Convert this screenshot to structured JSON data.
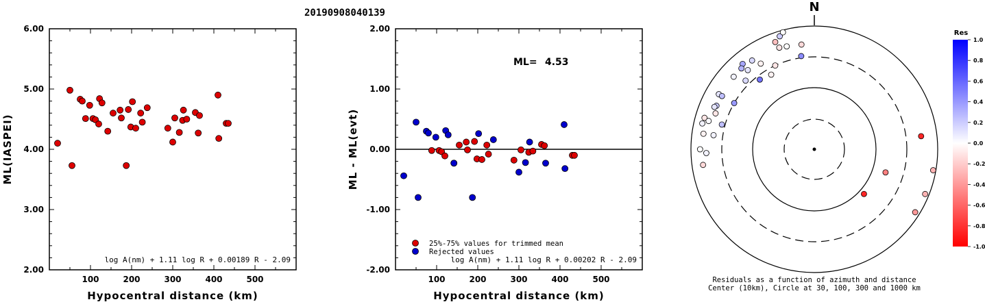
{
  "title": "20190908040139",
  "colors": {
    "red": "#dd0000",
    "blue": "#0000cc"
  },
  "chart_data": [
    {
      "type": "scatter",
      "ylabel": "ML(IASPEI)",
      "xlabel": "Hypocentral distance (km)",
      "xlim": [
        0,
        600
      ],
      "ylim": [
        2,
        6
      ],
      "xticks": [
        "100",
        "200",
        "300",
        "400",
        "500"
      ],
      "yticks": [
        "2.00",
        "3.00",
        "4.00",
        "5.00",
        "6.00"
      ],
      "formula": "log A(nm) + 1.11 log R + 0.00189 R - 2.09",
      "points": [
        [
          20,
          4.1
        ],
        [
          50,
          4.98
        ],
        [
          55,
          3.73
        ],
        [
          75,
          4.83
        ],
        [
          80,
          4.8
        ],
        [
          88,
          4.51
        ],
        [
          98,
          4.73
        ],
        [
          106,
          4.51
        ],
        [
          112,
          4.49
        ],
        [
          120,
          4.42
        ],
        [
          122,
          4.84
        ],
        [
          128,
          4.77
        ],
        [
          142,
          4.3
        ],
        [
          155,
          4.6
        ],
        [
          172,
          4.65
        ],
        [
          175,
          4.52
        ],
        [
          187,
          3.73
        ],
        [
          192,
          4.66
        ],
        [
          198,
          4.37
        ],
        [
          202,
          4.79
        ],
        [
          210,
          4.35
        ],
        [
          222,
          4.6
        ],
        [
          226,
          4.45
        ],
        [
          238,
          4.69
        ],
        [
          288,
          4.35
        ],
        [
          300,
          4.12
        ],
        [
          305,
          4.52
        ],
        [
          316,
          4.28
        ],
        [
          324,
          4.48
        ],
        [
          326,
          4.65
        ],
        [
          334,
          4.5
        ],
        [
          355,
          4.61
        ],
        [
          362,
          4.27
        ],
        [
          365,
          4.56
        ],
        [
          410,
          4.9
        ],
        [
          412,
          4.18
        ],
        [
          430,
          4.43
        ],
        [
          435,
          4.43
        ]
      ]
    },
    {
      "type": "scatter",
      "ylabel": "ML - ML(evt)",
      "xlabel": "Hypocentral distance (km)",
      "xlim": [
        0,
        600
      ],
      "ylim": [
        -2,
        2
      ],
      "xticks": [
        "100",
        "200",
        "300",
        "400",
        "500"
      ],
      "yticks": [
        "-2.00",
        "-1.00",
        "0.00",
        "1.00",
        "2.00"
      ],
      "ml_label": "ML=",
      "ml_value": "4.53",
      "formula": "log A(nm) + 1.11 log R + 0.00202 R - 2.09",
      "legend": [
        "25%-75% values for trimmed mean",
        "Rejected values"
      ],
      "series": [
        {
          "name": "25%-75% values for trimmed mean",
          "color": "red",
          "points": [
            [
              88,
              -0.02
            ],
            [
              106,
              -0.02
            ],
            [
              112,
              -0.04
            ],
            [
              120,
              -0.11
            ],
            [
              142,
              -0.23
            ],
            [
              155,
              0.07
            ],
            [
              172,
              0.12
            ],
            [
              175,
              -0.01
            ],
            [
              192,
              0.13
            ],
            [
              198,
              -0.16
            ],
            [
              210,
              -0.17
            ],
            [
              222,
              0.07
            ],
            [
              226,
              -0.08
            ],
            [
              288,
              -0.18
            ],
            [
              305,
              -0.01
            ],
            [
              324,
              -0.05
            ],
            [
              334,
              -0.03
            ],
            [
              355,
              0.08
            ],
            [
              362,
              0.06
            ],
            [
              430,
              -0.1
            ],
            [
              435,
              -0.1
            ]
          ]
        },
        {
          "name": "Rejected values",
          "color": "blue",
          "points": [
            [
              20,
              -0.44
            ],
            [
              50,
              0.45
            ],
            [
              55,
              -0.8
            ],
            [
              75,
              0.3
            ],
            [
              80,
              0.27
            ],
            [
              98,
              0.2
            ],
            [
              122,
              0.31
            ],
            [
              128,
              0.24
            ],
            [
              142,
              -0.23
            ],
            [
              187,
              -0.8
            ],
            [
              202,
              0.26
            ],
            [
              238,
              0.16
            ],
            [
              300,
              -0.38
            ],
            [
              316,
              -0.22
            ],
            [
              326,
              0.12
            ],
            [
              365,
              -0.23
            ],
            [
              410,
              0.41
            ],
            [
              412,
              -0.32
            ]
          ]
        }
      ]
    },
    {
      "type": "scatter",
      "subtype": "polar",
      "north_label": "N",
      "caption_1": "Residuals as a function of azimuth and distance",
      "caption_2": "Center (10km), Circle at 30, 100, 300 and 1000 km",
      "colorbar_title": "Res",
      "colorbar_ticks": [
        "1.0",
        "0.8",
        "0.6",
        "0.4",
        "0.2",
        "0.0",
        "-0.2",
        "-0.4",
        "-0.6",
        "-0.8",
        "-1.0"
      ],
      "rings_km": [
        30,
        100,
        300,
        1000
      ],
      "points": [
        {
          "az": 290,
          "dist": 490,
          "res": -0.1
        },
        {
          "az": 300,
          "dist": 600,
          "res": 0.1
        },
        {
          "az": 278,
          "dist": 640,
          "res": -0.05
        },
        {
          "az": 283,
          "dist": 720,
          "res": 0.05
        },
        {
          "az": 286,
          "dist": 700,
          "res": -0.1
        },
        {
          "az": 320,
          "dist": 630,
          "res": 0.35
        },
        {
          "az": 318,
          "dist": 570,
          "res": 0.3
        },
        {
          "az": 325,
          "dist": 560,
          "res": 0.15
        },
        {
          "az": 312,
          "dist": 560,
          "res": 0.05
        },
        {
          "az": 300,
          "dist": 520,
          "res": 0.25
        },
        {
          "az": 294,
          "dist": 530,
          "res": 0.2
        },
        {
          "az": 293,
          "dist": 560,
          "res": 0.1
        },
        {
          "az": 285,
          "dist": 580,
          "res": 0.02
        },
        {
          "az": 270,
          "dist": 700,
          "res": 0.0
        },
        {
          "az": 262,
          "dist": 650,
          "res": -0.15
        },
        {
          "az": 268,
          "dist": 550,
          "res": 0.05
        },
        {
          "az": 278,
          "dist": 430,
          "res": 0.05
        },
        {
          "az": 285,
          "dist": 340,
          "res": 0.25
        },
        {
          "az": 300,
          "dist": 300,
          "res": 0.4
        },
        {
          "az": 315,
          "dist": 360,
          "res": 0.15
        },
        {
          "az": 322,
          "dist": 260,
          "res": 0.55
        },
        {
          "az": 330,
          "dist": 240,
          "res": -0.05
        },
        {
          "az": 335,
          "dist": 300,
          "res": -0.1
        },
        {
          "az": 320,
          "dist": 460,
          "res": 0.1
        },
        {
          "az": 328,
          "dist": 420,
          "res": -0.05
        },
        {
          "az": 340,
          "dist": 700,
          "res": -0.25
        },
        {
          "az": 343,
          "dist": 820,
          "res": 0.2
        },
        {
          "az": 345,
          "dist": 920,
          "res": 0.0
        },
        {
          "az": 352,
          "dist": 320,
          "res": 0.45
        },
        {
          "az": 345,
          "dist": 520,
          "res": 0.0
        },
        {
          "az": 341,
          "dist": 540,
          "res": -0.1
        },
        {
          "az": 353,
          "dist": 500,
          "res": -0.15
        },
        {
          "az": 83,
          "dist": 540,
          "res": -0.85
        },
        {
          "az": 108,
          "dist": 160,
          "res": -0.5
        },
        {
          "az": 132,
          "dist": 120,
          "res": -0.85
        },
        {
          "az": 100,
          "dist": 900,
          "res": -0.3
        },
        {
          "az": 112,
          "dist": 860,
          "res": -0.3
        },
        {
          "az": 122,
          "dist": 840,
          "res": -0.4
        }
      ]
    }
  ]
}
